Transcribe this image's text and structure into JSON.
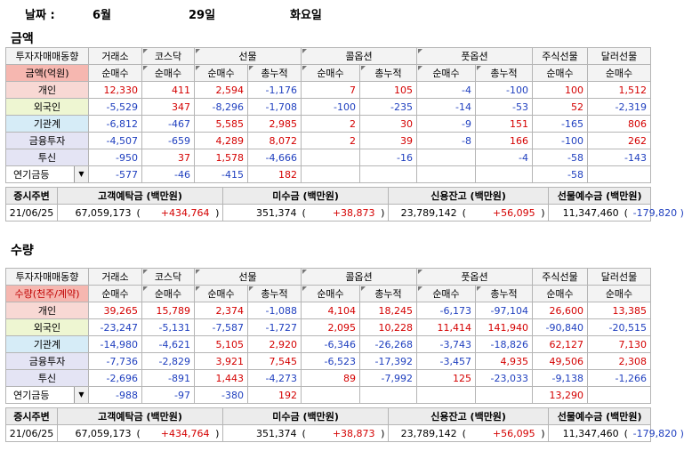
{
  "date": {
    "label": "날짜 :",
    "month": "6월",
    "day": "29일",
    "weekday": "화요일"
  },
  "amount": {
    "title": "금액",
    "header": {
      "corner_top": "투자자매매동향",
      "corner_sel": "금액(억원)",
      "groups": [
        "거래소",
        "코스닥",
        "선물",
        "콜옵션",
        "풋옵션",
        "주식선물",
        "달러선물"
      ],
      "sub": [
        "순매수",
        "순매수",
        "순매수",
        "총누적",
        "순매수",
        "총누적",
        "순매수",
        "총누적",
        "순매수",
        "순매수"
      ]
    },
    "rows": [
      {
        "label": "개인",
        "cells": [
          "12,330",
          "411",
          "2,594",
          "-1,176",
          "7",
          "105",
          "-4",
          "-100",
          "100",
          "1,512"
        ]
      },
      {
        "label": "외국인",
        "cells": [
          "-5,529",
          "347",
          "-8,296",
          "-1,708",
          "-100",
          "-235",
          "-14",
          "-53",
          "52",
          "-2,319"
        ]
      },
      {
        "label": "기관계",
        "cells": [
          "-6,812",
          "-467",
          "5,585",
          "2,985",
          "2",
          "30",
          "-9",
          "151",
          "-165",
          "806"
        ]
      },
      {
        "label": "금융투자",
        "cells": [
          "-4,507",
          "-659",
          "4,289",
          "8,072",
          "2",
          "39",
          "-8",
          "166",
          "-100",
          "262"
        ]
      },
      {
        "label": "투신",
        "cells": [
          "-950",
          "37",
          "1,578",
          "-4,666",
          "",
          "-16",
          "",
          "-4",
          "-58",
          "-143"
        ]
      },
      {
        "label": "연기금등",
        "cells": [
          "-577",
          "-46",
          "-415",
          "182",
          "",
          "",
          "",
          "",
          "-58",
          ""
        ]
      }
    ],
    "fund": {
      "headers": [
        "증시주변",
        "고객예탁금 (백만원)",
        "미수금 (백만원)",
        "신용잔고 (백만원)",
        "선물예수금 (백만원)"
      ],
      "date": "21/06/25",
      "deposit": "67,059,173",
      "deposit_chg": "+434,764",
      "unpaid": "351,374",
      "unpaid_chg": "+38,873",
      "credit": "23,789,142",
      "credit_chg": "+56,095",
      "fut": "11,347,460",
      "fut_chg": "-179,820",
      "open": "(",
      "close": ")"
    }
  },
  "quantity": {
    "title": "수량",
    "header": {
      "corner_top": "투자자매매동향",
      "corner_sel": "수량(천주/계약)",
      "groups": [
        "거래소",
        "코스닥",
        "선물",
        "콜옵션",
        "풋옵션",
        "주식선물",
        "달러선물"
      ],
      "sub": [
        "순매수",
        "순매수",
        "순매수",
        "총누적",
        "순매수",
        "총누적",
        "순매수",
        "총누적",
        "순매수",
        "순매수"
      ]
    },
    "rows": [
      {
        "label": "개인",
        "cells": [
          "39,265",
          "15,789",
          "2,374",
          "-1,088",
          "4,104",
          "18,245",
          "-6,173",
          "-97,104",
          "26,600",
          "13,385"
        ]
      },
      {
        "label": "외국인",
        "cells": [
          "-23,247",
          "-5,131",
          "-7,587",
          "-1,727",
          "2,095",
          "10,228",
          "11,414",
          "141,940",
          "-90,840",
          "-20,515"
        ]
      },
      {
        "label": "기관계",
        "cells": [
          "-14,980",
          "-4,621",
          "5,105",
          "2,920",
          "-6,346",
          "-26,268",
          "-3,743",
          "-18,826",
          "62,127",
          "7,130"
        ]
      },
      {
        "label": "금융투자",
        "cells": [
          "-7,736",
          "-2,829",
          "3,921",
          "7,545",
          "-6,523",
          "-17,392",
          "-3,457",
          "4,935",
          "49,506",
          "2,308"
        ]
      },
      {
        "label": "투신",
        "cells": [
          "-2,696",
          "-891",
          "1,443",
          "-4,273",
          "89",
          "-7,992",
          "125",
          "-23,033",
          "-9,138",
          "-1,266"
        ]
      },
      {
        "label": "연기금등",
        "cells": [
          "-988",
          "-97",
          "-380",
          "192",
          "",
          "",
          "",
          "",
          "13,290",
          ""
        ]
      }
    ],
    "fund": {
      "headers": [
        "증시주변",
        "고객예탁금 (백만원)",
        "미수금 (백만원)",
        "신용잔고 (백만원)",
        "선물예수금 (백만원)"
      ],
      "date": "21/06/25",
      "deposit": "67,059,173",
      "deposit_chg": "+434,764",
      "unpaid": "351,374",
      "unpaid_chg": "+38,873",
      "credit": "23,789,142",
      "credit_chg": "+56,095",
      "fut": "11,347,460",
      "fut_chg": "-179,820",
      "open": "(",
      "close": ")"
    }
  },
  "colors": {
    "positive": "#d40000",
    "negative": "#1f3fbf",
    "selected": "#f6b7b0"
  },
  "icons": {
    "dropdown": "triangle-down-icon",
    "corner": "corner-triangle-icon"
  }
}
